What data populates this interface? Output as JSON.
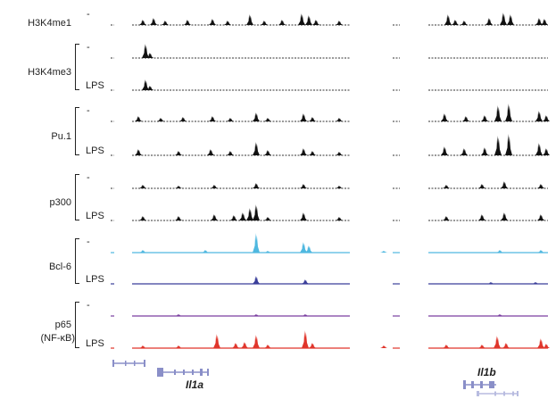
{
  "tracks": [
    {
      "label": "H3K4me1",
      "bracket": false,
      "rows": [
        {
          "condition": "-",
          "color": "#111111",
          "baseline": true,
          "peaks": [
            [
              160,
              6
            ],
            [
              172,
              8
            ],
            [
              185,
              5
            ],
            [
              210,
              6
            ],
            [
              238,
              7
            ],
            [
              255,
              5
            ],
            [
              280,
              12
            ],
            [
              296,
              5
            ],
            [
              316,
              6
            ],
            [
              338,
              13
            ],
            [
              346,
              11
            ],
            [
              354,
              6
            ],
            [
              380,
              5
            ],
            [
              502,
              12
            ],
            [
              510,
              6
            ],
            [
              520,
              5
            ],
            [
              548,
              8
            ],
            [
              564,
              14
            ],
            [
              572,
              12
            ],
            [
              604,
              8
            ],
            [
              610,
              7
            ]
          ]
        }
      ]
    },
    {
      "label": "H3K4me3",
      "bracket": true,
      "rows": [
        {
          "condition": "-",
          "color": "#111111",
          "baseline": true,
          "peaks": [
            [
              163,
              16
            ],
            [
              168,
              6
            ]
          ]
        },
        {
          "condition": "LPS",
          "color": "#111111",
          "baseline": true,
          "peaks": [
            [
              163,
              12
            ],
            [
              168,
              5
            ]
          ]
        }
      ]
    },
    {
      "label": "Pu.1",
      "bracket": true,
      "rows": [
        {
          "condition": "-",
          "color": "#111111",
          "baseline": true,
          "peaks": [
            [
              155,
              6
            ],
            [
              180,
              4
            ],
            [
              205,
              5
            ],
            [
              238,
              6
            ],
            [
              258,
              4
            ],
            [
              287,
              10
            ],
            [
              300,
              4
            ],
            [
              340,
              9
            ],
            [
              350,
              5
            ],
            [
              380,
              4
            ],
            [
              498,
              9
            ],
            [
              522,
              6
            ],
            [
              543,
              7
            ],
            [
              558,
              18
            ],
            [
              570,
              20
            ],
            [
              604,
              12
            ],
            [
              612,
              7
            ]
          ]
        },
        {
          "condition": "LPS",
          "color": "#111111",
          "baseline": true,
          "peaks": [
            [
              155,
              7
            ],
            [
              200,
              5
            ],
            [
              236,
              7
            ],
            [
              258,
              5
            ],
            [
              287,
              15
            ],
            [
              300,
              6
            ],
            [
              340,
              8
            ],
            [
              350,
              5
            ],
            [
              380,
              4
            ],
            [
              498,
              10
            ],
            [
              520,
              8
            ],
            [
              543,
              9
            ],
            [
              558,
              22
            ],
            [
              570,
              24
            ],
            [
              604,
              14
            ],
            [
              612,
              8
            ]
          ]
        }
      ]
    },
    {
      "label": "p300",
      "bracket": true,
      "rows": [
        {
          "condition": "-",
          "color": "#111111",
          "baseline": true,
          "peaks": [
            [
              160,
              4
            ],
            [
              200,
              3
            ],
            [
              240,
              4
            ],
            [
              287,
              6
            ],
            [
              340,
              5
            ],
            [
              380,
              3
            ],
            [
              500,
              4
            ],
            [
              540,
              5
            ],
            [
              565,
              8
            ],
            [
              606,
              5
            ]
          ]
        },
        {
          "condition": "LPS",
          "color": "#111111",
          "baseline": true,
          "peaks": [
            [
              160,
              5
            ],
            [
              200,
              5
            ],
            [
              240,
              7
            ],
            [
              262,
              6
            ],
            [
              272,
              9
            ],
            [
              280,
              14
            ],
            [
              287,
              18
            ],
            [
              300,
              4
            ],
            [
              340,
              9
            ],
            [
              380,
              4
            ],
            [
              500,
              5
            ],
            [
              540,
              7
            ],
            [
              565,
              9
            ],
            [
              606,
              7
            ]
          ]
        }
      ]
    },
    {
      "label": "Bcl-6",
      "bracket": true,
      "rows": [
        {
          "condition": "-",
          "color": "#4fb8e0",
          "baseline": true,
          "peaks": [
            [
              160,
              3
            ],
            [
              230,
              3
            ],
            [
              287,
              22
            ],
            [
              300,
              2
            ],
            [
              340,
              12
            ],
            [
              346,
              8
            ],
            [
              430,
              2
            ],
            [
              560,
              3
            ],
            [
              606,
              3
            ]
          ]
        },
        {
          "condition": "LPS",
          "color": "#3b3f9a",
          "baseline": true,
          "peaks": [
            [
              287,
              9
            ],
            [
              342,
              5
            ],
            [
              550,
              2
            ],
            [
              600,
              2
            ]
          ]
        }
      ]
    },
    {
      "label": "p65",
      "label2": "(NF-κB)",
      "bracket": true,
      "rows": [
        {
          "condition": "-",
          "color": "#7a3fa0",
          "baseline": true,
          "peaks": [
            [
              200,
              2
            ],
            [
              287,
              2
            ],
            [
              342,
              2
            ],
            [
              560,
              2
            ]
          ]
        },
        {
          "condition": "LPS",
          "color": "#e0352b",
          "baseline": true,
          "peaks": [
            [
              160,
              3
            ],
            [
              200,
              3
            ],
            [
              243,
              16
            ],
            [
              264,
              6
            ],
            [
              274,
              7
            ],
            [
              287,
              15
            ],
            [
              300,
              4
            ],
            [
              342,
              20
            ],
            [
              350,
              6
            ],
            [
              430,
              3
            ],
            [
              500,
              4
            ],
            [
              540,
              4
            ],
            [
              557,
              14
            ],
            [
              567,
              6
            ],
            [
              606,
              11
            ],
            [
              612,
              5
            ]
          ]
        }
      ]
    }
  ],
  "genes": [
    {
      "name": "Il1a"
    },
    {
      "name": "Il1b"
    }
  ],
  "colors": {
    "gene_model": "#8a8fc8",
    "gene_model_light": "#b8bce0"
  }
}
